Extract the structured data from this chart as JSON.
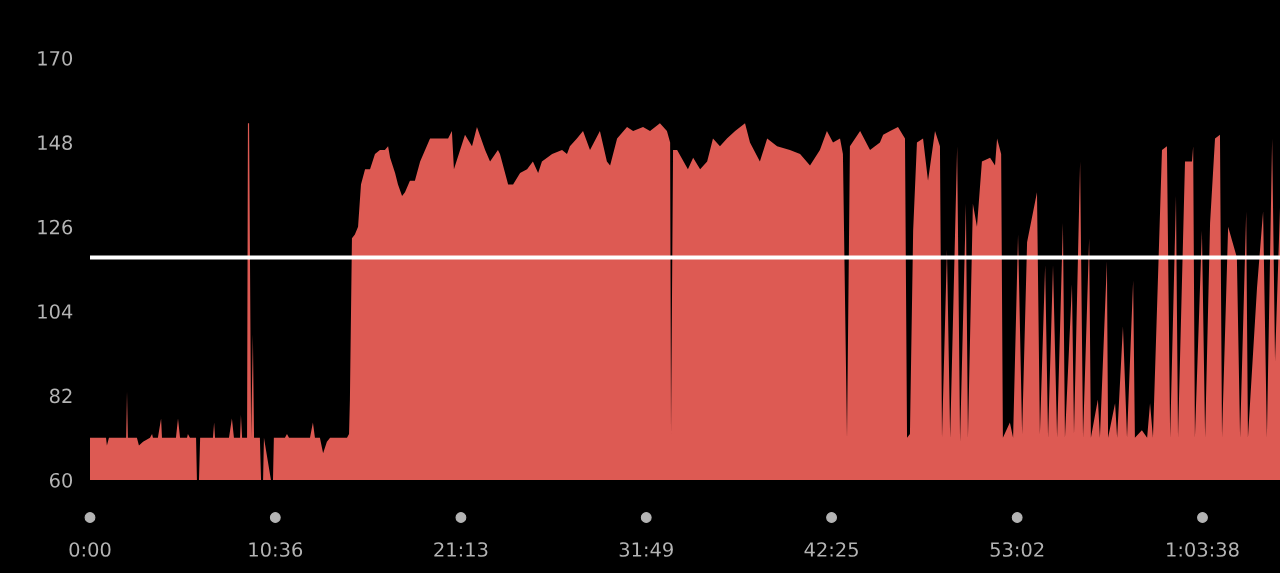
{
  "chart_data": {
    "type": "area",
    "x": [
      0,
      55,
      58,
      65,
      124,
      127,
      130,
      161,
      168,
      182,
      206,
      213,
      216,
      233,
      244,
      247,
      295,
      302,
      309,
      333,
      336,
      343,
      364,
      367,
      374,
      378,
      422,
      426,
      429,
      477,
      487,
      494,
      515,
      518,
      522,
      539,
      542,
      546,
      553,
      559,
      563,
      583,
      587,
      594,
      597,
      621,
      628,
      631,
      669,
      676,
      683,
      755,
      765,
      772,
      789,
      800,
      813,
      824,
      882,
      889,
      892,
      899,
      909,
      920,
      930,
      944,
      961,
      978,
      995,
      1012,
      1023,
      1030,
      1047,
      1057,
      1071,
      1081,
      1098,
      1115,
      1133,
      1150,
      1167,
      1184,
      1201,
      1229,
      1242,
      1249,
      1287,
      1311,
      1328,
      1356,
      1373,
      1400,
      1407,
      1435,
      1452,
      1476,
      1500,
      1520,
      1538,
      1551,
      1586,
      1620,
      1637,
      1647,
      1671,
      1692,
      1716,
      1750,
      1774,
      1785,
      1809,
      1843,
      1864,
      1898,
      1922,
      1956,
      1980,
      1991,
      1994,
      2001,
      2015,
      2052,
      2070,
      2094,
      2118,
      2138,
      2162,
      2186,
      2214,
      2248,
      2265,
      2299,
      2324,
      2358,
      2402,
      2437,
      2471,
      2505,
      2529,
      2550,
      2574,
      2584,
      2598,
      2608,
      2643,
      2677,
      2711,
      2722,
      2746,
      2773,
      2797,
      2804,
      2814,
      2825,
      2838,
      2859,
      2876,
      2900,
      2917,
      2924,
      2941,
      2952,
      2976,
      2986,
      3006,
      3013,
      3030,
      3044,
      3061,
      3089,
      3106,
      3113,
      3127,
      3133,
      3157,
      3168,
      3185,
      3199,
      3216,
      3250,
      3260,
      3278,
      3288,
      3305,
      3319,
      3339,
      3346,
      3370,
      3377,
      3398,
      3408,
      3429,
      3435,
      3459,
      3466,
      3490,
      3494,
      3518,
      3525,
      3545,
      3559,
      3580,
      3586,
      3610,
      3628,
      3638,
      3648,
      3679,
      3696,
      3707,
      3727,
      3734,
      3758,
      3782,
      3786,
      3792,
      3816,
      3827,
      3844,
      3861,
      3878,
      3885,
      3906,
      3936,
      3947,
      3968,
      3974,
      4005,
      4026,
      4039,
      4057,
      4067,
      4084
    ],
    "series": [
      {
        "color": "#dd5a53",
        "values": [
          71,
          71,
          69,
          71,
          71,
          83,
          71,
          71,
          69,
          70,
          71,
          72,
          71,
          71,
          76,
          71,
          71,
          76,
          71,
          71,
          72,
          71,
          71,
          60,
          60,
          71,
          71,
          75,
          71,
          71,
          76,
          71,
          71,
          77,
          71,
          71,
          153,
          153,
          71,
          98,
          71,
          71,
          60,
          60,
          71,
          60,
          60,
          71,
          71,
          72,
          71,
          71,
          75,
          71,
          71,
          67,
          70,
          71,
          71,
          72,
          81,
          123,
          124,
          126,
          137,
          141,
          141,
          145,
          146,
          146,
          147,
          144,
          140,
          137,
          134,
          135,
          138,
          138,
          143,
          146,
          149,
          149,
          149,
          149,
          151,
          141,
          150,
          147,
          152,
          146,
          143,
          146,
          145,
          137,
          137,
          140,
          141,
          143,
          140,
          143,
          145,
          146,
          145,
          147,
          149,
          151,
          146,
          151,
          143,
          142,
          149,
          152,
          151,
          152,
          151,
          153,
          151,
          148,
          72,
          146,
          146,
          141,
          144,
          141,
          143,
          149,
          147,
          149,
          151,
          153,
          148,
          143,
          149,
          147,
          146,
          145,
          142,
          146,
          151,
          148,
          149,
          145,
          71,
          147,
          151,
          146,
          148,
          150,
          151,
          152,
          149,
          71,
          72,
          125,
          148,
          149,
          138,
          151,
          147,
          71,
          120,
          71,
          147,
          70,
          132,
          71,
          132,
          126,
          143,
          144,
          142,
          149,
          145,
          71,
          75,
          71,
          124,
          72,
          122,
          135,
          72,
          116,
          71,
          116,
          71,
          127,
          71,
          111,
          72,
          143,
          71,
          123,
          71,
          81,
          71,
          117,
          71,
          80,
          71,
          100,
          71,
          112,
          71,
          73,
          71,
          80,
          71,
          146,
          147,
          71,
          134,
          71,
          143,
          143,
          147,
          71,
          125,
          71,
          127,
          149,
          150,
          71,
          126,
          118,
          71,
          130,
          71,
          110,
          130,
          71,
          149,
          91,
          131
        ]
      }
    ],
    "xlim": [
      0,
      4084
    ],
    "xticks": [
      {
        "value": 0,
        "label": "0:00"
      },
      {
        "value": 636,
        "label": "10:36"
      },
      {
        "value": 1273,
        "label": "21:13"
      },
      {
        "value": 1909,
        "label": "31:49"
      },
      {
        "value": 2545,
        "label": "42:25"
      },
      {
        "value": 3182,
        "label": "53:02"
      },
      {
        "value": 3818,
        "label": "1:03:38"
      }
    ],
    "ylim": [
      60,
      170
    ],
    "yticks": [
      60,
      82,
      104,
      126,
      148,
      170
    ],
    "ref_lines": [
      {
        "axis": "y",
        "value": 118,
        "color": "#ffffff"
      }
    ]
  }
}
